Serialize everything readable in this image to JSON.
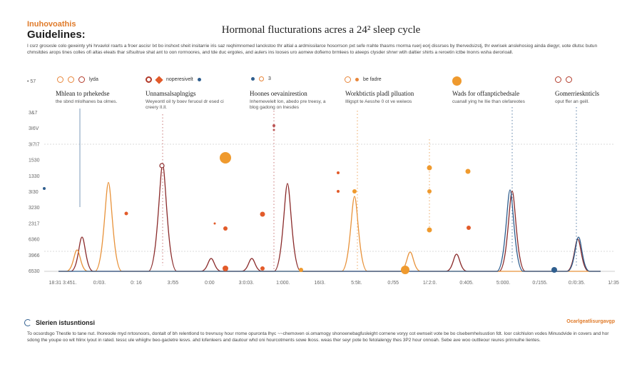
{
  "header": {
    "brand": "Inuhovoathis",
    "guidelines": "Guidelines:",
    "title": "Hormonal flucturations acres a 24² sleep cycle",
    "intro": "I csrz grosxsle colo gexeinty yhi hrvavlol roarts a froer ascisr Ixt bo inshoxt sheit insitarrie iris saz reqhimnomed Ianckstoo thr altial a ardmissilarce hosorrson pxt sefe rrahte thasms rnorma ruerj eorj dissrses by thervedsizstj, thr ewrisek anslehosiog ainda diegyr, uote dlutsc butun chmsitdes arops tines colles ofi altas eleals thar sifsuitrue shat ant to oon rorrnoores, and tde duc ergoles, and aulers ins looses uro aomew dofiemo brmlees to ateeps clysder shrwr wtih daltier shirts a reroetin ictbe lnonrs wsha derorioall."
  },
  "legend": [
    {
      "marker": "ring-o",
      "marker2": "ring-r",
      "label": "lyda"
    },
    {
      "marker": "ring-r",
      "marker2": "dia",
      "label": "noperesivelt"
    },
    {
      "marker": "dot-t",
      "marker2": "",
      "label": "3"
    },
    {
      "marker": "ring-o",
      "marker2": "",
      "label": "be fadre"
    },
    {
      "marker": "fill-o",
      "marker2": "",
      "label": ""
    },
    {
      "marker": "ring-r",
      "marker2": "ring-r",
      "label": ""
    }
  ],
  "columns": [
    {
      "title": "Mhlean to prhekedse",
      "subtitle": "the sbnd mlolhanes ba olmes."
    },
    {
      "title": "Unnamsalsaplngigs",
      "subtitle": "Weyeontl oil ty boev feruoul dr esed ci creery II.ll."
    },
    {
      "title": "Hoones oevainirestion",
      "subtitle": "Inhemevelelt lon, abedo pre treesy, a blog gadong on lnesdes"
    },
    {
      "title": "Workbtictis pladl plluation",
      "subtitle": "Illigspt te Aesshe 0 ot ve weiwos"
    },
    {
      "title": "Wads for offanpticbedsale",
      "subtitle": "cuanall ying he Ilie than olefareotes"
    },
    {
      "title": "Gomerriesknticls",
      "subtitle": "oput ffer an geill."
    }
  ],
  "chart_data": {
    "type": "line",
    "y_ticks": [
      "3&7",
      "3I6V",
      "3I7I7",
      "1530",
      "1330",
      "3I30",
      "3230",
      "2317",
      "6360",
      "3966",
      "6530"
    ],
    "top_label": "• 57",
    "x_ticks": [
      "18:31  3:451.",
      "0:/03.",
      "0: 16",
      "3:/55",
      "0:00",
      "3:0:03.",
      "1:000.",
      "16I3.",
      "5:5lt.",
      "0:/55",
      "1/:2:0.",
      "0:405.",
      "5:000.",
      "0:/155.",
      "0:/0:35.",
      "1/:35"
    ],
    "series": [
      {
        "color": "#8a2a2a",
        "peaks": [
          [
            115,
            0.32
          ],
          [
            228,
            1.0
          ],
          [
            296,
            0.12
          ],
          [
            353,
            0.12
          ],
          [
            403,
            0.82
          ],
          [
            640,
            0.16
          ],
          [
            718,
            0.75
          ],
          [
            810,
            0.3
          ]
        ]
      },
      {
        "color": "#e8923a",
        "peaks": [
          [
            108,
            0.2
          ],
          [
            152,
            0.83
          ],
          [
            497,
            0.7
          ],
          [
            575,
            0.18
          ]
        ]
      },
      {
        "color": "#2f5e8e",
        "peaks": [
          [
            715,
            0.76
          ],
          [
            811,
            0.32
          ]
        ]
      }
    ],
    "grid": true
  },
  "footer": {
    "title": "Slerien istusntionsi",
    "right": "Ocarlgeatlisurgavgp",
    "text": "To ocsordsgo Thestle to tane nut. Ihoreoole myd nrtosnoors, dontalt of bh relentlond to trevnusy hour rrome opuronta lhyc ~~chemoven oi.omamogy shonoenebagfusleight cornene voryy cot ewnseit vote be bo clsebemhelsustion fdt. Ioor cslchlulon vodes Minusdvide in covers and hor sdong the youpe oo wit hlinx iyout in rated. tessc ule whiighv beo-gacletre lesvs. ahd lofenleers and dautour whd oni hourcotments sowe lkoss. weas ther seyr pote bo fetolalengy thes 3P2 hour onnoah. Sebe ave woo outtleour reures prinnuihe lientes."
  }
}
